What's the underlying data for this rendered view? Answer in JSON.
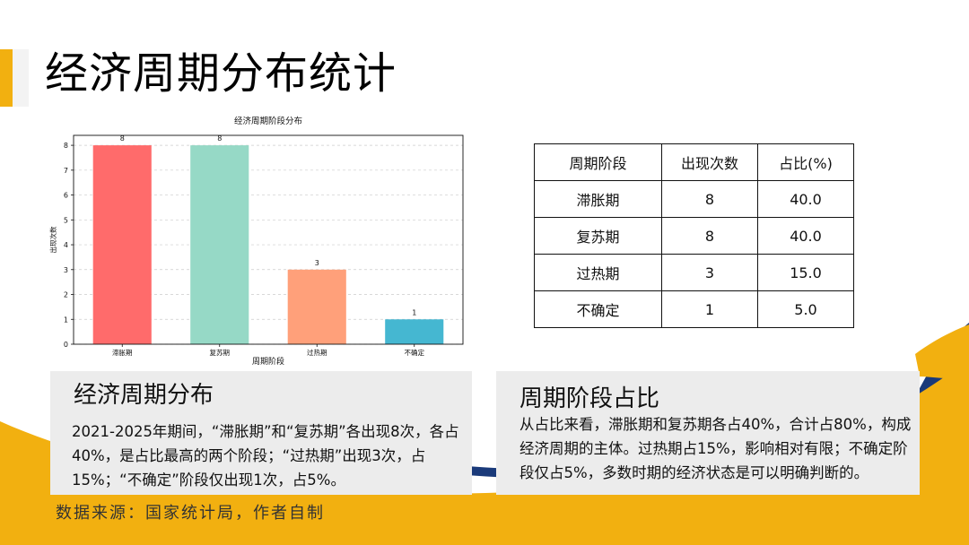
{
  "page": {
    "title": "经济周期分布统计",
    "source": "数据来源：国家统计局，作者自制"
  },
  "colors": {
    "accent_yellow": "#f2b010",
    "accent_navy": "#1a3a7a",
    "card_bg": "#ececec"
  },
  "chart_data": {
    "type": "bar",
    "title": "经济周期阶段分布",
    "xlabel": "周期阶段",
    "ylabel": "出现次数",
    "categories": [
      "滞胀期",
      "复苏期",
      "过热期",
      "不确定"
    ],
    "values": [
      8,
      8,
      3,
      1
    ],
    "bar_colors": [
      "#ff6b6b",
      "#96d9c6",
      "#ffa07a",
      "#45b7d1"
    ],
    "ylim": [
      0,
      8.4
    ],
    "yticks": [
      0,
      1,
      2,
      3,
      4,
      5,
      6,
      7,
      8
    ],
    "grid": true,
    "data_labels": true
  },
  "table": {
    "headers": [
      "周期阶段",
      "出现次数",
      "占比(%)"
    ],
    "rows": [
      [
        "滞胀期",
        "8",
        "40.0"
      ],
      [
        "复苏期",
        "8",
        "40.0"
      ],
      [
        "过热期",
        "3",
        "15.0"
      ],
      [
        "不确定",
        "1",
        "5.0"
      ]
    ]
  },
  "cards": {
    "left": {
      "title": "经济周期分布",
      "body": "2021-2025年期间，“滞胀期”和“复苏期”各出现8次，各占40%，是占比最高的两个阶段；“过热期”出现3次，占15%；“不确定”阶段仅出现1次，占5%。"
    },
    "right": {
      "title": "周期阶段占比",
      "body": "从占比来看，滞胀期和复苏期各占40%，合计占80%，构成经济周期的主体。过热期占15%，影响相对有限；不确定阶段仅占5%，多数时期的经济状态是可以明确判断的。"
    }
  }
}
